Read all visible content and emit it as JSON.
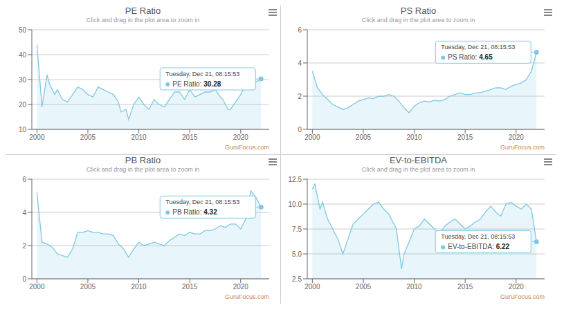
{
  "chart_data": [
    {
      "type": "area",
      "title": "PE Ratio",
      "subtitle": "Click and drag in the plot area to zoom in",
      "x": [
        2000,
        2000.5,
        2001,
        2001.25,
        2001.75,
        2002,
        2002.5,
        2003,
        2003.5,
        2004,
        2004.5,
        2005,
        2005.5,
        2006,
        2006.5,
        2007,
        2007.5,
        2008,
        2008.25,
        2008.75,
        2009,
        2009.5,
        2010,
        2010.5,
        2011,
        2011.5,
        2012,
        2012.5,
        2013,
        2013.5,
        2014,
        2014.5,
        2015,
        2015.5,
        2016,
        2016.5,
        2017,
        2017.5,
        2018,
        2018.25,
        2018.75,
        2019,
        2019.5,
        2020,
        2020.5,
        2021,
        2021.5,
        2022
      ],
      "values": [
        44,
        19,
        32,
        28,
        24,
        26,
        22,
        21,
        24,
        27,
        26,
        24,
        23,
        27,
        26,
        25,
        24,
        21,
        17,
        18,
        14,
        20,
        23,
        20,
        18,
        22,
        20,
        19,
        22,
        25,
        25,
        22,
        26,
        23,
        24,
        25,
        25,
        26,
        23,
        22,
        18,
        18,
        21,
        24,
        28,
        26,
        29,
        30.28
      ],
      "color": "#7ec8e3",
      "xlim": [
        1999.5,
        2022.8
      ],
      "xticks": [
        2000,
        2005,
        2010,
        2015,
        2020
      ],
      "ylim": [
        10,
        50
      ],
      "yticks": [
        10,
        20,
        30,
        40,
        50
      ],
      "grid": true,
      "annotations": [
        "GuruFocus.com",
        "Tuesday, Dec 21, 08:15:53",
        "PE Ratio: 30.28"
      ]
    },
    {
      "type": "area",
      "title": "PS Ratio",
      "subtitle": "Click and drag in the plot area to zoom in",
      "x": [
        2000,
        2000.5,
        2001,
        2001.5,
        2002,
        2002.5,
        2003,
        2003.5,
        2004,
        2004.5,
        2005,
        2005.5,
        2006,
        2006.5,
        2007,
        2007.5,
        2008,
        2008.5,
        2009,
        2009.5,
        2010,
        2010.5,
        2011,
        2011.5,
        2012,
        2012.5,
        2013,
        2013.5,
        2014,
        2014.5,
        2015,
        2015.5,
        2016,
        2016.5,
        2017,
        2017.5,
        2018,
        2018.5,
        2019,
        2019.5,
        2020,
        2020.5,
        2021,
        2021.5,
        2022
      ],
      "values": [
        3.5,
        2.5,
        2.1,
        1.8,
        1.5,
        1.35,
        1.2,
        1.3,
        1.5,
        1.7,
        1.8,
        1.9,
        1.85,
        2.0,
        2.0,
        2.1,
        2.0,
        1.7,
        1.3,
        1.0,
        1.4,
        1.6,
        1.7,
        1.65,
        1.75,
        1.7,
        1.8,
        2.0,
        2.1,
        2.2,
        2.1,
        2.1,
        2.2,
        2.2,
        2.3,
        2.4,
        2.5,
        2.5,
        2.4,
        2.6,
        2.7,
        2.8,
        3.0,
        3.5,
        4.65
      ],
      "color": "#7ec8e3",
      "xlim": [
        1999.5,
        2022.8
      ],
      "xticks": [
        2000,
        2005,
        2010,
        2015,
        2020
      ],
      "ylim": [
        0,
        6
      ],
      "yticks": [
        0,
        2,
        4,
        6
      ],
      "grid": true,
      "annotations": [
        "GuruFocus.com",
        "Tuesday, Dec 21, 08:15:53",
        "PS Ratio: 4.65"
      ]
    },
    {
      "type": "area",
      "title": "PB Ratio",
      "subtitle": "Click and drag in the plot area to zoom in",
      "x": [
        2000,
        2000.5,
        2001,
        2001.5,
        2002,
        2002.5,
        2003,
        2003.5,
        2004,
        2004.5,
        2005,
        2005.5,
        2006,
        2006.5,
        2007,
        2007.5,
        2008,
        2008.5,
        2009,
        2009.5,
        2010,
        2010.5,
        2011,
        2011.5,
        2012,
        2012.5,
        2013,
        2013.5,
        2014,
        2014.5,
        2015,
        2015.5,
        2016,
        2016.5,
        2017,
        2017.5,
        2018,
        2018.5,
        2019,
        2019.5,
        2020,
        2020.5,
        2021,
        2021.5,
        2022
      ],
      "values": [
        5.2,
        2.2,
        2.1,
        1.9,
        1.5,
        1.4,
        1.3,
        1.8,
        2.8,
        2.8,
        2.9,
        2.8,
        2.8,
        2.7,
        2.7,
        2.6,
        2.1,
        1.8,
        1.3,
        1.8,
        2.2,
        2.0,
        2.1,
        2.2,
        2.1,
        2.0,
        2.3,
        2.5,
        2.7,
        2.6,
        2.8,
        2.7,
        2.7,
        2.9,
        2.9,
        3.0,
        3.2,
        3.1,
        3.3,
        3.3,
        3.0,
        3.6,
        5.3,
        4.9,
        4.32
      ],
      "color": "#7ec8e3",
      "xlim": [
        1999.5,
        2022.8
      ],
      "xticks": [
        2000,
        2005,
        2010,
        2015,
        2020
      ],
      "ylim": [
        0,
        6
      ],
      "yticks": [
        0,
        2,
        4,
        6
      ],
      "grid": true,
      "annotations": [
        "GuruFocus.com",
        "Tuesday, Dec 21, 08:15:53",
        "PB Ratio: 4.32"
      ]
    },
    {
      "type": "area",
      "title": "EV-to-EBITDA",
      "subtitle": "Click and drag in the plot area to zoom in",
      "x": [
        2000,
        2000.25,
        2000.75,
        2001,
        2001.5,
        2002,
        2002.5,
        2003,
        2003.5,
        2004,
        2004.5,
        2005,
        2005.5,
        2006,
        2006.5,
        2007,
        2007.5,
        2008,
        2008.25,
        2008.75,
        2009,
        2009.5,
        2010,
        2010.5,
        2011,
        2011.5,
        2012,
        2012.5,
        2013,
        2013.5,
        2014,
        2014.5,
        2015,
        2015.5,
        2016,
        2016.5,
        2017,
        2017.5,
        2018,
        2018.5,
        2019,
        2019.5,
        2020,
        2020.5,
        2021,
        2021.5,
        2022
      ],
      "values": [
        11.5,
        12.0,
        9.5,
        10.2,
        8.5,
        7.5,
        6.5,
        5.0,
        6.5,
        8.0,
        8.5,
        9.0,
        9.5,
        10.0,
        10.2,
        9.5,
        9.0,
        8.0,
        7.5,
        3.5,
        5.0,
        6.2,
        7.5,
        7.8,
        8.5,
        8.0,
        7.5,
        7.0,
        7.8,
        8.2,
        8.5,
        8.0,
        7.5,
        7.8,
        8.2,
        8.5,
        9.2,
        9.8,
        9.2,
        8.8,
        10.0,
        10.2,
        9.8,
        9.5,
        10.0,
        9.5,
        6.22
      ],
      "color": "#7ec8e3",
      "xlim": [
        1999.5,
        2022.8
      ],
      "xticks": [
        2000,
        2005,
        2010,
        2015,
        2020
      ],
      "ylim": [
        2.5,
        12.5
      ],
      "yticks": [
        2.5,
        {
          "value": 5,
          "label": "5.0"
        },
        7.5,
        {
          "value": 10,
          "label": "10.0"
        },
        12.5
      ],
      "grid": true,
      "annotations": [
        "GuruFocus.com",
        "Tuesday, Dec 21, 08:15:53",
        "EV-to-EBITDA: 6.22"
      ]
    }
  ]
}
